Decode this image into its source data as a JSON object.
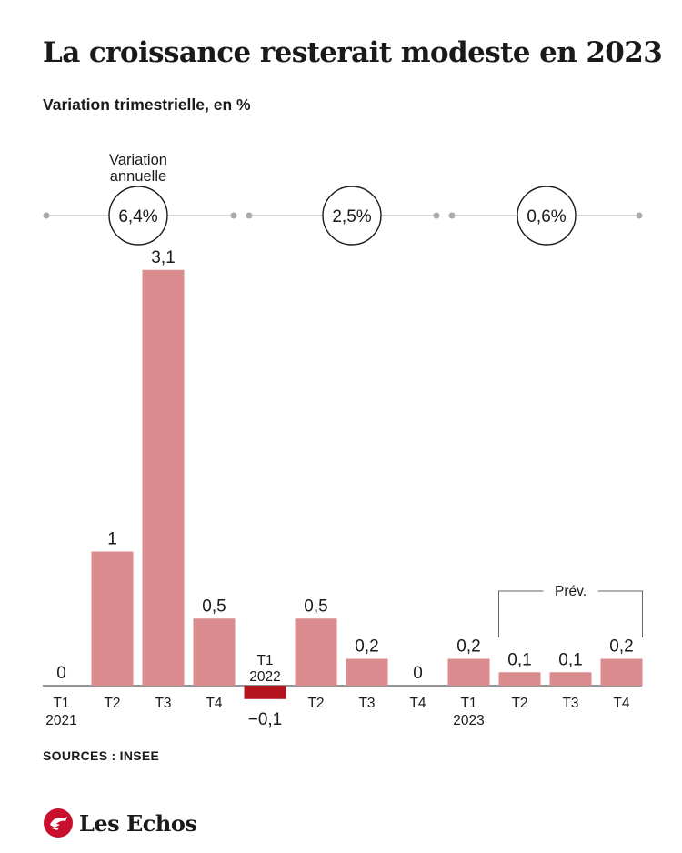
{
  "title": "La croissance resterait modeste en 2023",
  "subtitle": "Variation trimestrielle, en %",
  "annual_label": "Variation annuelle",
  "annual": [
    {
      "year": "2021",
      "value": "6,4%"
    },
    {
      "year": "2022",
      "value": "2,5%"
    },
    {
      "year": "2023",
      "value": "0,6%"
    }
  ],
  "forecast_label": "Prév.",
  "source": "SOURCES : INSEE",
  "brand": "Les Echos",
  "brand_icon": "les-echos-logo",
  "colors": {
    "bar": "#d98b8e",
    "negative": "#b3131b",
    "text": "#1a1a1a",
    "grid": "#bbbbbb"
  },
  "chart_data": {
    "type": "bar",
    "title": "La croissance resterait modeste en 2023",
    "subtitle": "Variation trimestrielle, en %",
    "categories": [
      [
        "T1",
        "2021"
      ],
      [
        "T2"
      ],
      [
        "T3"
      ],
      [
        "T4"
      ],
      [
        "T1",
        "2022"
      ],
      [
        "T2"
      ],
      [
        "T3"
      ],
      [
        "T4"
      ],
      [
        "T1",
        "2023"
      ],
      [
        "T2"
      ],
      [
        "T3"
      ],
      [
        "T4"
      ]
    ],
    "values": [
      0,
      1,
      3.1,
      0.5,
      -0.1,
      0.5,
      0.2,
      0,
      0.2,
      0.1,
      0.1,
      0.2
    ],
    "value_labels": [
      "0",
      "1",
      "3,1",
      "0,5",
      "−0,1",
      "0,5",
      "0,2",
      "0",
      "0,2",
      "0,1",
      "0,1",
      "0,2"
    ],
    "forecast": [
      false,
      false,
      false,
      false,
      false,
      false,
      false,
      false,
      false,
      true,
      true,
      true
    ],
    "ylim": [
      -0.1,
      3.1
    ],
    "grid": false
  }
}
